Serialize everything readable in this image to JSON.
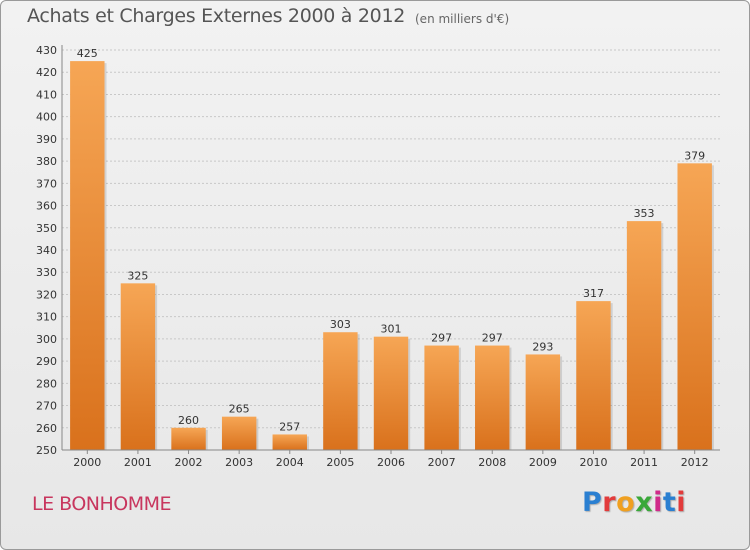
{
  "header": {
    "title": "Achats et Charges Externes 2000 à 2012",
    "subtitle": "(en milliers d'€)"
  },
  "footer": {
    "place": "LE BONHOMME",
    "logo_text": "Proxiti",
    "logo_colors": [
      "#2a7fd1",
      "#e23b3b",
      "#f0a020",
      "#3aa83a",
      "#d02a8a",
      "#2a7fd1",
      "#e23b3b"
    ]
  },
  "colors": {
    "bar_top": "#f6a655",
    "bar_bottom": "#d9711c",
    "grid": "#c8c8c8",
    "axis_text": "#333333",
    "title": "#555555",
    "place": "#c8365e"
  },
  "chart_data": {
    "type": "bar",
    "title": "Achats et Charges Externes 2000 à 2012",
    "subtitle": "(en milliers d'€)",
    "categories": [
      "2000",
      "2001",
      "2002",
      "2003",
      "2004",
      "2005",
      "2006",
      "2007",
      "2008",
      "2009",
      "2010",
      "2011",
      "2012"
    ],
    "values": [
      425,
      325,
      260,
      265,
      257,
      303,
      301,
      297,
      297,
      293,
      317,
      353,
      379
    ],
    "ylim": [
      250,
      430
    ],
    "ytick_step": 10,
    "grid": true
  }
}
